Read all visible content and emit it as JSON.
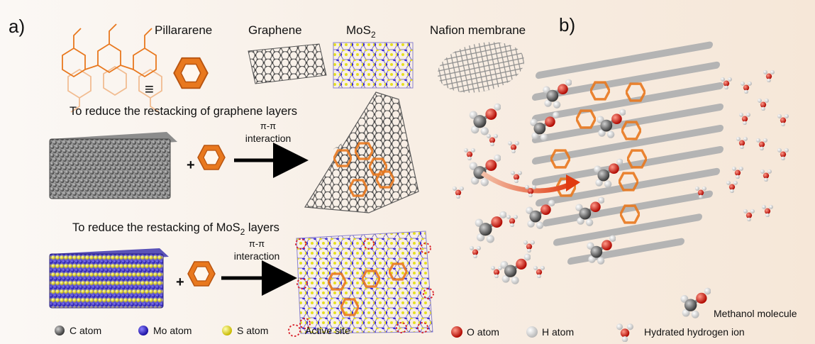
{
  "panel_a": {
    "label": "a)",
    "top_labels": {
      "pillararene": "Pillararene",
      "graphene": "Graphene",
      "mos2_base": "MoS",
      "mos2_sub": "2",
      "nafion": "Nafion membrane"
    },
    "equiv_symbol": "≡",
    "row_graphene": {
      "title": "To reduce the restacking of graphene layers",
      "interaction_line1": "π-π",
      "interaction_line2": "interaction",
      "plus": "+"
    },
    "row_mos2": {
      "title_pre": "To reduce the restacking of MoS",
      "title_sub": "2",
      "title_post": " layers",
      "interaction_line1": "π-π",
      "interaction_line2": "interaction",
      "plus": "+"
    },
    "legend": {
      "c_atom": "C atom",
      "mo_atom": "Mo atom",
      "s_atom": "S atom",
      "active_site": "Active site"
    }
  },
  "panel_b": {
    "label": "b)",
    "legend": {
      "o_atom": "O atom",
      "h_atom": "H atom",
      "methanol": "Methanol molecule",
      "hydrated_ion": "Hydrated hydrogen ion"
    }
  },
  "colors": {
    "pillararene": "#e8781e",
    "carbon": "#555555",
    "molybdenum": "#2e1fd0",
    "sulfur": "#e8e020",
    "oxygen": "#e0140c",
    "hydrogen": "#f2f2f2",
    "membrane": "#9a9a9a",
    "active_site": "#d8202a"
  }
}
